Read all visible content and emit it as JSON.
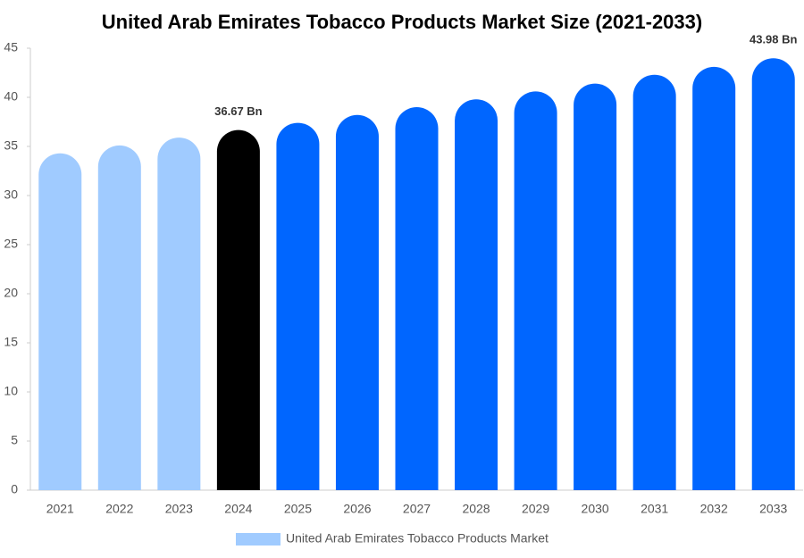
{
  "chart_data": {
    "type": "bar",
    "title": "United Arab Emirates Tobacco Products Market Size (2021-2033)",
    "categories": [
      "2021",
      "2022",
      "2023",
      "2024",
      "2025",
      "2026",
      "2027",
      "2028",
      "2029",
      "2030",
      "2031",
      "2032",
      "2033"
    ],
    "series": [
      {
        "name": "United Arab Emirates Tobacco Products Market",
        "color": "#a0cbff",
        "values": [
          34.3,
          35.1,
          35.9,
          36.67,
          37.4,
          38.2,
          39.0,
          39.8,
          40.6,
          41.4,
          42.3,
          43.1,
          43.98
        ],
        "colors": [
          "#a0cbff",
          "#a0cbff",
          "#a0cbff",
          "#000000",
          "#0066ff",
          "#0066ff",
          "#0066ff",
          "#0066ff",
          "#0066ff",
          "#0066ff",
          "#0066ff",
          "#0066ff",
          "#0066ff"
        ],
        "value_labels": [
          null,
          null,
          null,
          "36.67 Bn",
          null,
          null,
          null,
          null,
          null,
          null,
          null,
          null,
          "43.98 Bn"
        ]
      }
    ],
    "ylim": [
      0,
      45
    ],
    "yticks": [
      0,
      5,
      10,
      15,
      20,
      25,
      30,
      35,
      40,
      45
    ],
    "grid": false
  }
}
